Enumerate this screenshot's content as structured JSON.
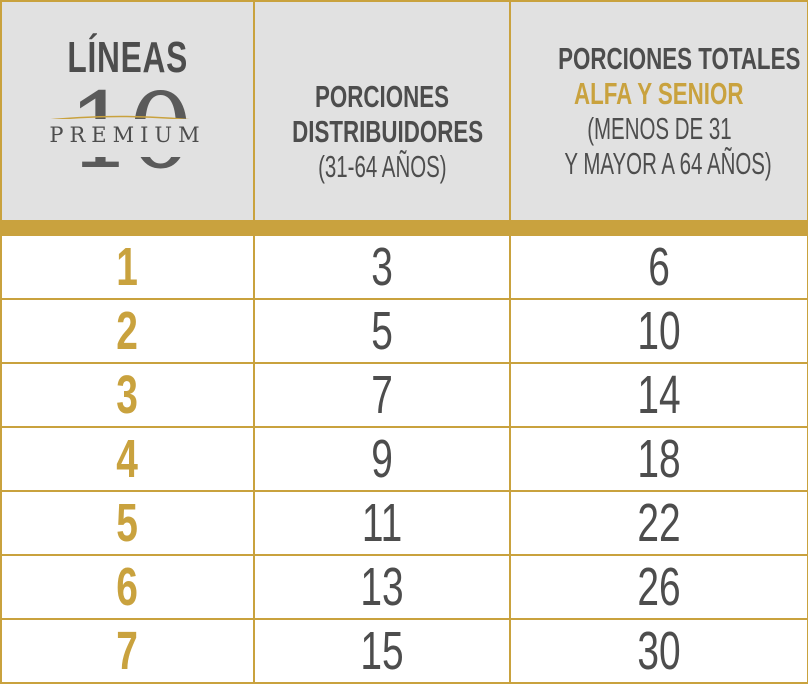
{
  "header": {
    "col1": {
      "title": "LÍNEAS",
      "logo_number": "10",
      "logo_word": "PREMIUM"
    },
    "col2": {
      "title_line1": "PORCIONES",
      "title_line2": "DISTRIBUIDORES",
      "subtitle": "(31-64 AÑOS)"
    },
    "col3": {
      "title_line1": "PORCIONES TOTALES",
      "highlight": "ALFA Y SENIOR",
      "subtitle_line1": "(MENOS DE 31",
      "subtitle_line2": "Y MAYOR A 64 AÑOS)"
    }
  },
  "rows": [
    {
      "line": "1",
      "distribuidores": "3",
      "totales": "6"
    },
    {
      "line": "2",
      "distribuidores": "5",
      "totales": "10"
    },
    {
      "line": "3",
      "distribuidores": "7",
      "totales": "14"
    },
    {
      "line": "4",
      "distribuidores": "9",
      "totales": "18"
    },
    {
      "line": "5",
      "distribuidores": "11",
      "totales": "22"
    },
    {
      "line": "6",
      "distribuidores": "13",
      "totales": "26"
    },
    {
      "line": "7",
      "distribuidores": "15",
      "totales": "30"
    }
  ],
  "colors": {
    "gold": "#c9a23e",
    "header_bg": "#e1e1e1",
    "text": "#4d4d4d"
  }
}
